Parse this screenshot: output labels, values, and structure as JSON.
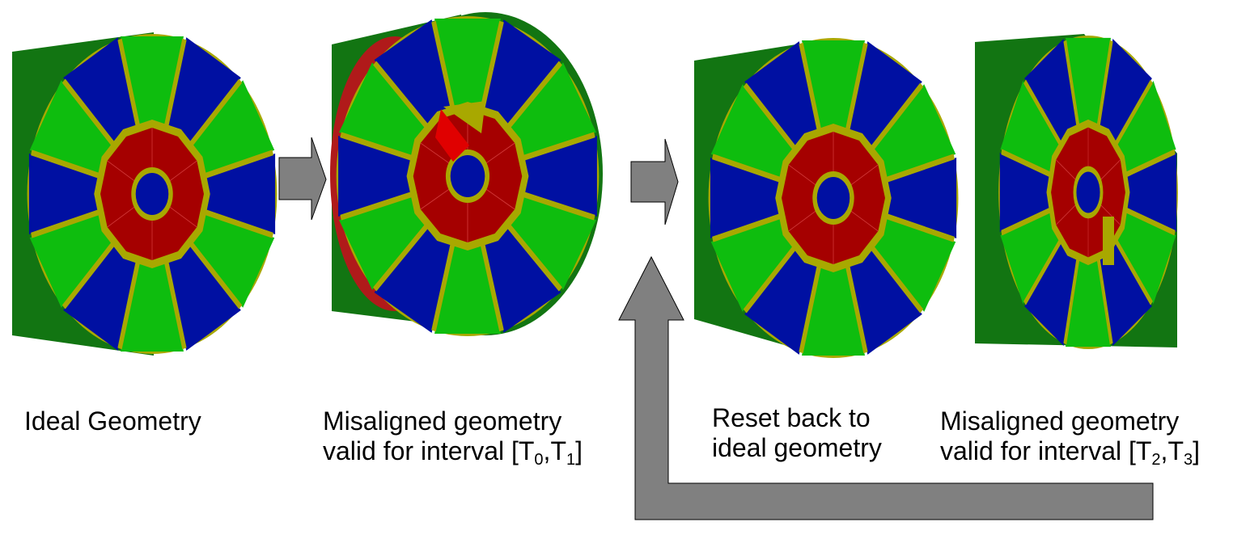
{
  "captions": {
    "ideal": "Ideal Geometry",
    "mis1": {
      "line1": "Misaligned geometry",
      "line2_prefix": "valid for interval [T",
      "sub_a": "0",
      "mid": ",T",
      "sub_b": "1",
      "suffix": "]"
    },
    "reset": {
      "line1": "Reset back to",
      "line2": "ideal geometry"
    },
    "mis2": {
      "line1": "Misaligned geometry",
      "line2_prefix": "valid for interval [T",
      "sub_a": "2",
      "mid": ",T",
      "sub_b": "3",
      "suffix": "]"
    }
  },
  "colors": {
    "outer_green": "#127512",
    "green_segment": "#0ebd0e",
    "blue_segment": "#0010a2",
    "yellow_frame": "#a8a800",
    "red_core": "#a50000",
    "arrow_fill": "#808080",
    "arrow_stroke": "#000000"
  }
}
